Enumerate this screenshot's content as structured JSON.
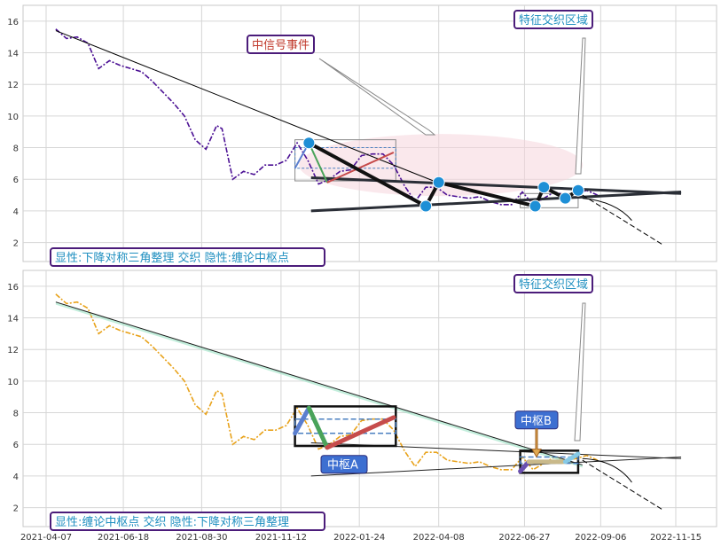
{
  "chart_data": [
    {
      "panel": "top",
      "type": "line",
      "ylim": [
        0.8,
        17.0
      ],
      "yticks": [
        2,
        4,
        6,
        8,
        10,
        12,
        14,
        16
      ],
      "grid": true,
      "colors": {
        "price": "#4b1094",
        "trend": "#000000",
        "triangle": "#2a2e36",
        "zigzag": "#111111",
        "pivot_dot": "#1e8fd6",
        "event_shade": "#f6d5dc"
      },
      "price": {
        "x": [
          "2021-04-16",
          "2021-04-26",
          "2021-05-06",
          "2021-05-16",
          "2021-05-26",
          "2021-06-05",
          "2021-06-15",
          "2021-06-25",
          "2021-07-05",
          "2021-07-15",
          "2021-07-25",
          "2021-08-04",
          "2021-08-14",
          "2021-08-24",
          "2021-09-03",
          "2021-09-13",
          "2021-09-18",
          "2021-09-28",
          "2021-10-08",
          "2021-10-18",
          "2021-10-28",
          "2021-11-07",
          "2021-11-17",
          "2021-11-27",
          "2021-12-07",
          "2021-12-17",
          "2021-12-27",
          "2022-01-06",
          "2022-01-16",
          "2022-01-26",
          "2022-02-05",
          "2022-02-15",
          "2022-02-25",
          "2022-03-07",
          "2022-03-17",
          "2022-03-27",
          "2022-04-06",
          "2022-04-16",
          "2022-04-26",
          "2022-05-06",
          "2022-05-16",
          "2022-05-26",
          "2022-06-05",
          "2022-06-15",
          "2022-06-25",
          "2022-07-05",
          "2022-07-15",
          "2022-07-25",
          "2022-08-04",
          "2022-08-14",
          "2022-08-24",
          "2022-09-03"
        ],
        "y": [
          15.5,
          14.9,
          15.0,
          14.6,
          13.0,
          13.5,
          13.2,
          13.0,
          12.8,
          12.2,
          11.5,
          10.8,
          10.0,
          8.5,
          7.9,
          9.4,
          9.2,
          6.0,
          6.5,
          6.3,
          6.9,
          6.9,
          7.2,
          8.3,
          7.2,
          5.7,
          6.0,
          6.5,
          6.6,
          7.5,
          7.6,
          7.6,
          6.9,
          5.6,
          4.6,
          5.5,
          5.5,
          5.0,
          4.9,
          4.8,
          4.9,
          4.6,
          4.4,
          4.4,
          5.2,
          4.4,
          4.8,
          5.2,
          5.0,
          5.1,
          5.3,
          5.0
        ]
      },
      "trendline": [
        {
          "x": "2021-04-16",
          "y": 15.4
        },
        {
          "x": "2022-04-03",
          "y": 5.9
        }
      ],
      "triangle": {
        "upper": [
          {
            "x": "2021-12-10",
            "y": 6.1
          },
          {
            "x": "2022-11-20",
            "y": 5.1
          }
        ],
        "lower": [
          {
            "x": "2021-12-10",
            "y": 4.0
          },
          {
            "x": "2022-11-20",
            "y": 5.2
          }
        ]
      },
      "zigzag": [
        {
          "x": "2021-12-08",
          "y": 8.3
        },
        {
          "x": "2022-03-27",
          "y": 4.3
        },
        {
          "x": "2022-04-08",
          "y": 5.8
        },
        {
          "x": "2022-07-07",
          "y": 4.3
        },
        {
          "x": "2022-07-15",
          "y": 5.5
        },
        {
          "x": "2022-08-04",
          "y": 4.8
        },
        {
          "x": "2022-08-16",
          "y": 5.3
        }
      ],
      "pivot_points": [
        {
          "x": "2021-12-08",
          "y": 8.3
        },
        {
          "x": "2022-03-27",
          "y": 4.3
        },
        {
          "x": "2022-04-08",
          "y": 5.8
        },
        {
          "x": "2022-07-07",
          "y": 4.3
        },
        {
          "x": "2022-07-15",
          "y": 5.5
        },
        {
          "x": "2022-08-04",
          "y": 4.8
        },
        {
          "x": "2022-08-16",
          "y": 5.3
        }
      ],
      "projection": [
        {
          "x": "2022-08-20",
          "y": 5.0
        },
        {
          "x": "2022-11-02",
          "y": 1.9
        }
      ],
      "annotations": [
        {
          "text": "中信号事件",
          "color": "#c0392b",
          "border": "#4b1c7a"
        },
        {
          "text": "特征交织区域",
          "color": "#1f8fc0",
          "border": "#4b1c7a"
        },
        {
          "text": "显性:下降对称三角整理 交织 隐性:缠论中枢点",
          "color": "#1f8fc0",
          "border": "#4b1c7a"
        }
      ]
    },
    {
      "panel": "bottom",
      "type": "line",
      "ylim": [
        0.8,
        17.0
      ],
      "yticks": [
        2,
        4,
        6,
        8,
        10,
        12,
        14,
        16
      ],
      "grid": true,
      "colors": {
        "price": "#e8a21a",
        "trend": "#1a1a1a",
        "trend_fill": "#9be3c4",
        "center_box": "#111111",
        "center_inner": "#4a7fc0"
      },
      "trendline": [
        {
          "x": "2021-04-16",
          "y": 15.0
        },
        {
          "x": "2022-08-20",
          "y": 4.7
        }
      ],
      "zigzag_segments": [
        {
          "from": {
            "x": "2021-11-25",
            "y": 6.7
          },
          "to": {
            "x": "2021-12-08",
            "y": 8.3
          },
          "color": "#5b7fcf"
        },
        {
          "from": {
            "x": "2021-12-08",
            "y": 8.3
          },
          "to": {
            "x": "2021-12-25",
            "y": 5.8
          },
          "color": "#4aa35a"
        },
        {
          "from": {
            "x": "2021-12-25",
            "y": 5.8
          },
          "to": {
            "x": "2022-02-25",
            "y": 7.7
          },
          "color": "#c64b4b"
        },
        {
          "from": {
            "x": "2022-06-23",
            "y": 4.3
          },
          "to": {
            "x": "2022-07-01",
            "y": 4.9
          },
          "color": "#6a4fb0"
        },
        {
          "from": {
            "x": "2022-07-01",
            "y": 4.9
          },
          "to": {
            "x": "2022-08-04",
            "y": 4.9
          },
          "color": "#c9b98a"
        },
        {
          "from": {
            "x": "2022-08-04",
            "y": 4.9
          },
          "to": {
            "x": "2022-08-16",
            "y": 5.4
          },
          "color": "#86c9e6"
        }
      ],
      "centers": [
        {
          "label": "中枢A",
          "x0": "2021-11-25",
          "x1": "2022-02-27",
          "y0": 5.9,
          "y1": 8.4,
          "inner": [
            6.7,
            7.6
          ]
        },
        {
          "label": "中枢B",
          "x0": "2022-06-23",
          "x1": "2022-08-16",
          "y0": 4.2,
          "y1": 5.6,
          "inner": [
            4.8,
            5.2
          ]
        }
      ],
      "annotations": [
        {
          "text": "特征交织区域",
          "color": "#1f8fc0",
          "border": "#4b1c7a"
        },
        {
          "text": "显性:缠论中枢点 交织 隐性:下降对称三角整理",
          "color": "#1f8fc0",
          "border": "#4b1c7a"
        }
      ],
      "xticks": [
        "2021-04-07",
        "2021-06-18",
        "2021-08-30",
        "2021-11-12",
        "2022-01-24",
        "2022-04-08",
        "2022-06-27",
        "2022-09-06",
        "2022-11-15"
      ]
    }
  ]
}
